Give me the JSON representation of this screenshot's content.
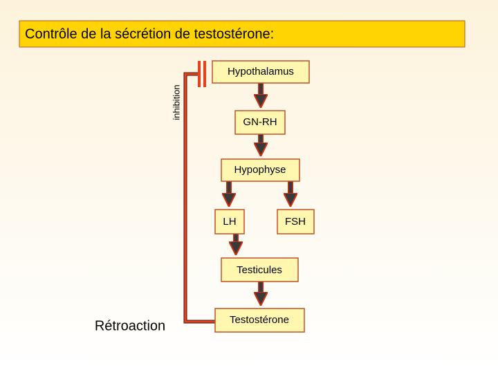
{
  "title": "Contrôle de la sécrétion de testostérone:",
  "nodes": [
    {
      "label": "Hypothalamus"
    },
    {
      "label": "GN-RH"
    },
    {
      "label": "Hypophyse"
    },
    {
      "label": "LH"
    },
    {
      "label": "FSH"
    },
    {
      "label": "Testicules"
    },
    {
      "label": "Testostérone"
    }
  ],
  "feedback": {
    "label": "Rétroaction",
    "effect": "inhibition"
  }
}
